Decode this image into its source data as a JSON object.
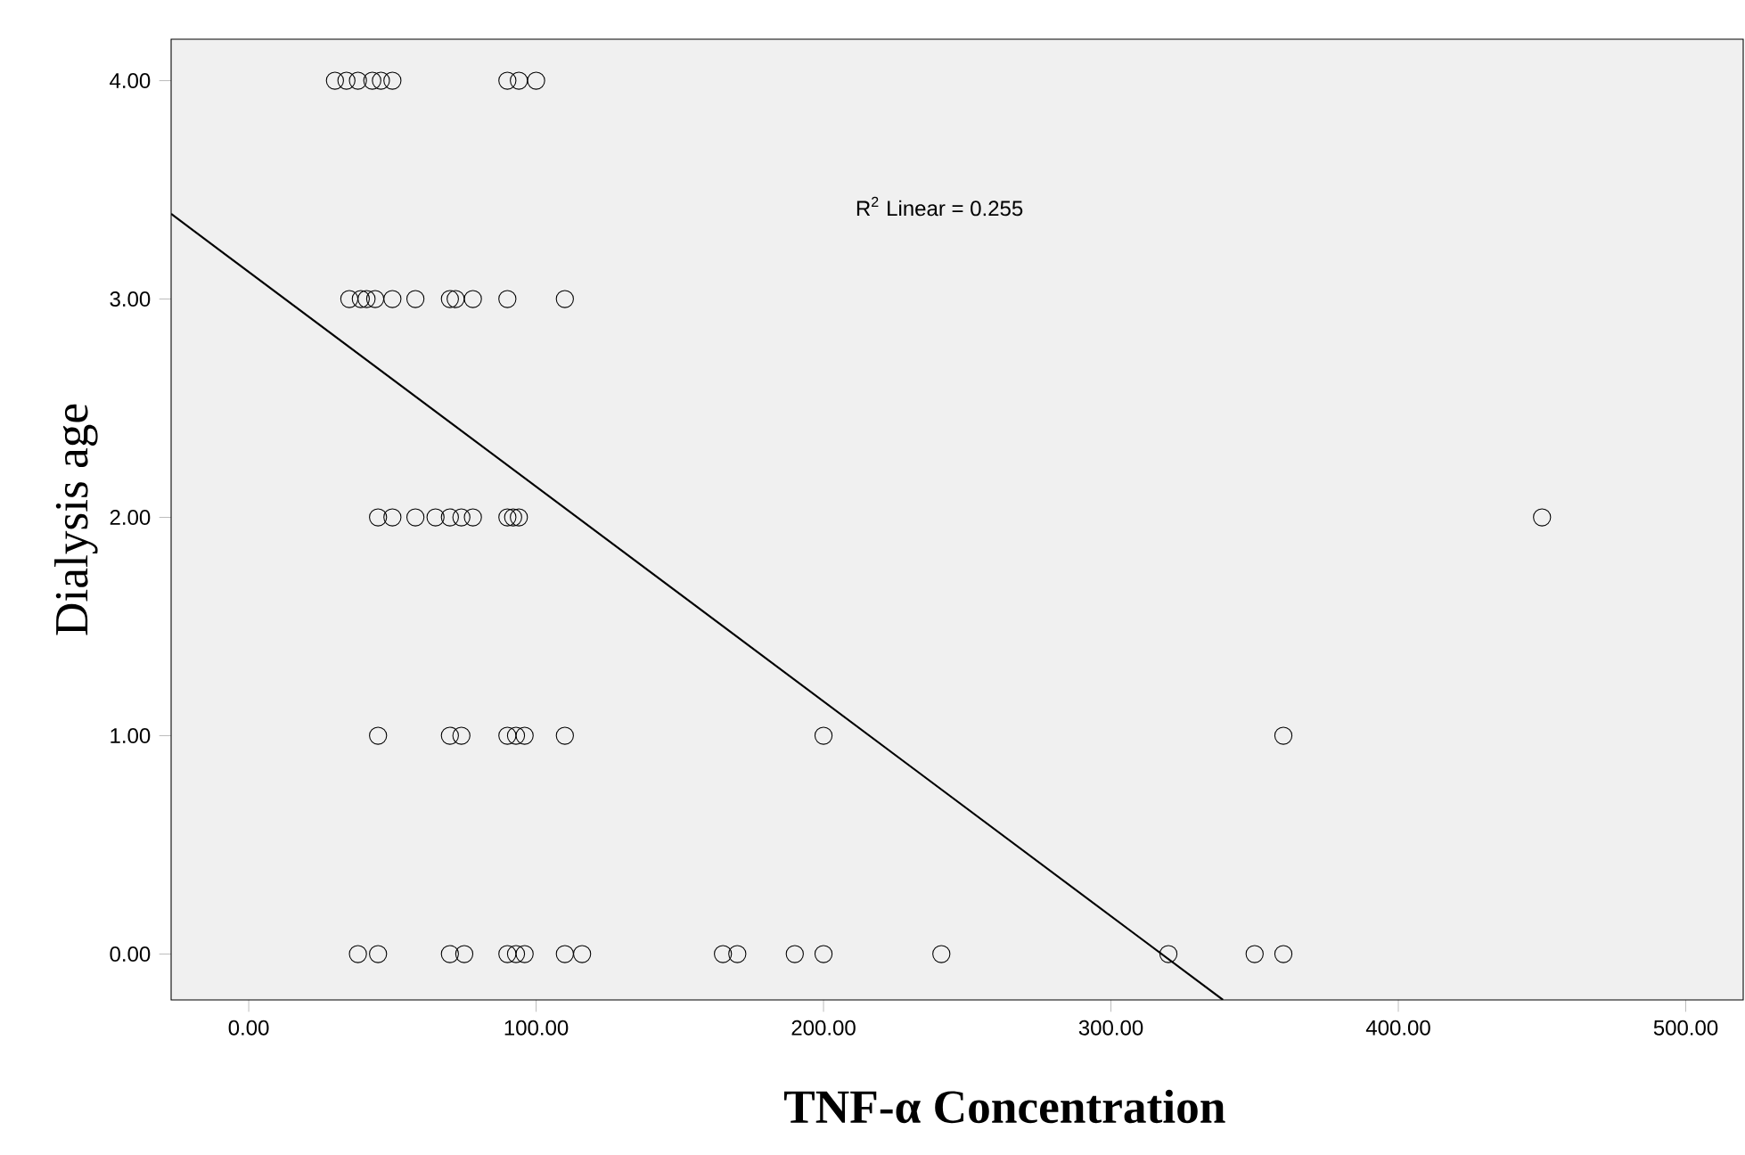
{
  "chart_data": {
    "type": "scatter",
    "xlabel": "TNF-α Concentration",
    "ylabel": "Dialysis age",
    "annotations": [
      "R$^{2}$ Linear = 0.255"
    ],
    "marker": "circle",
    "xlim": [
      -27,
      520
    ],
    "ylim": [
      -0.21,
      4.19
    ],
    "xticks": [
      {
        "value": 0,
        "label": "0.00"
      },
      {
        "value": 100,
        "label": "100.00"
      },
      {
        "value": 200,
        "label": "200.00"
      },
      {
        "value": 300,
        "label": "300.00"
      },
      {
        "value": 400,
        "label": "400.00"
      },
      {
        "value": 500,
        "label": "500.00"
      }
    ],
    "yticks": [
      {
        "value": 0,
        "label": "0.00"
      },
      {
        "value": 1,
        "label": "1.00"
      },
      {
        "value": 2,
        "label": "2.00"
      },
      {
        "value": 3,
        "label": "3.00"
      },
      {
        "value": 4,
        "label": "4.00"
      }
    ],
    "series": [
      {
        "color": "#000000",
        "x": [
          30,
          34,
          38,
          43,
          46,
          50,
          90,
          94,
          100,
          35,
          39,
          41,
          44,
          50,
          58,
          70,
          72,
          78,
          90,
          110,
          45,
          50,
          58,
          65,
          70,
          74,
          78,
          90,
          92,
          94,
          450,
          45,
          70,
          74,
          90,
          93,
          96,
          110,
          200,
          360,
          38,
          45,
          70,
          75,
          90,
          93,
          96,
          110,
          116,
          165,
          170,
          190,
          200,
          241,
          320,
          350,
          360
        ],
        "values": [
          4,
          4,
          4,
          4,
          4,
          4,
          4,
          4,
          4,
          3,
          3,
          3,
          3,
          3,
          3,
          3,
          3,
          3,
          3,
          3,
          2,
          2,
          2,
          2,
          2,
          2,
          2,
          2,
          2,
          2,
          2,
          1,
          1,
          1,
          1,
          1,
          1,
          1,
          1,
          1,
          0,
          0,
          0,
          0,
          0,
          0,
          0,
          0,
          0,
          0,
          0,
          0,
          0,
          0,
          0,
          0,
          0
        ]
      },
      {
        "type": "line",
        "color": "#000000",
        "marker": "none",
        "x": [
          -27,
          339
        ],
        "values": [
          3.39,
          -0.21
        ]
      }
    ]
  }
}
